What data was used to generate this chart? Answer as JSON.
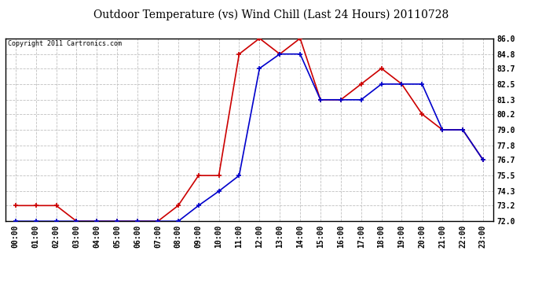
{
  "title": "Outdoor Temperature (vs) Wind Chill (Last 24 Hours) 20110728",
  "copyright": "Copyright 2011 Cartronics.com",
  "x_labels": [
    "00:00",
    "01:00",
    "02:00",
    "03:00",
    "04:00",
    "05:00",
    "06:00",
    "07:00",
    "08:00",
    "09:00",
    "10:00",
    "11:00",
    "12:00",
    "13:00",
    "14:00",
    "15:00",
    "16:00",
    "17:00",
    "18:00",
    "19:00",
    "20:00",
    "21:00",
    "22:00",
    "23:00"
  ],
  "temp_red": [
    73.2,
    73.2,
    73.2,
    72.0,
    72.0,
    72.0,
    72.0,
    72.0,
    73.2,
    75.5,
    75.5,
    84.8,
    86.0,
    84.8,
    86.0,
    81.3,
    81.3,
    82.5,
    83.7,
    82.5,
    80.2,
    79.0,
    79.0,
    76.7
  ],
  "temp_blue": [
    72.0,
    72.0,
    72.0,
    72.0,
    72.0,
    72.0,
    72.0,
    72.0,
    72.0,
    73.2,
    74.3,
    75.5,
    83.7,
    84.8,
    84.8,
    81.3,
    81.3,
    81.3,
    82.5,
    82.5,
    82.5,
    79.0,
    79.0,
    76.7
  ],
  "ylim": [
    72.0,
    86.0
  ],
  "yticks": [
    72.0,
    73.2,
    74.3,
    75.5,
    76.7,
    77.8,
    79.0,
    80.2,
    81.3,
    82.5,
    83.7,
    84.8,
    86.0
  ],
  "background_color": "#ffffff",
  "plot_bg_color": "#ffffff",
  "grid_color": "#c0c0c0",
  "red_color": "#cc0000",
  "blue_color": "#0000cc",
  "title_color": "#000000",
  "title_fontsize": 10,
  "copyright_fontsize": 6,
  "tick_fontsize": 7
}
